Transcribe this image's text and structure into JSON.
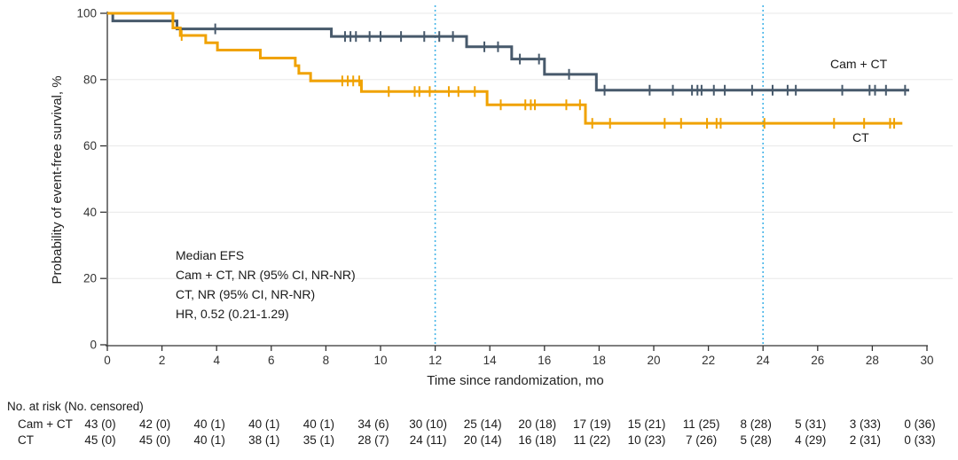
{
  "chart_data": {
    "type": "line",
    "subtype": "kaplan-meier-step",
    "title": "",
    "xlabel": "Time since randomization, mo",
    "ylabel": "Probability of event-free survival, %",
    "xlim": [
      0,
      30
    ],
    "ylim": [
      0,
      100
    ],
    "xticks": [
      0,
      2,
      4,
      6,
      8,
      10,
      12,
      14,
      16,
      18,
      20,
      22,
      24,
      26,
      28,
      30
    ],
    "yticks": [
      0,
      20,
      40,
      60,
      80,
      100
    ],
    "grid": "horizontal",
    "reference_lines_x": [
      12,
      24
    ],
    "legend_position": "curve-end-labels",
    "series": [
      {
        "name": "Cam + CT",
        "color": "#47596B",
        "steps": [
          [
            0,
            100
          ],
          [
            0.2,
            97.7
          ],
          [
            2.55,
            95.3
          ],
          [
            8.2,
            93.0
          ],
          [
            13.15,
            89.9
          ],
          [
            14.8,
            86.2
          ],
          [
            16.0,
            81.6
          ],
          [
            17.9,
            76.8
          ]
        ],
        "end_t": 29.35,
        "censor_marks": [
          [
            3.95,
            95.3
          ],
          [
            8.7,
            93.0
          ],
          [
            8.9,
            93.0
          ],
          [
            9.1,
            93.0
          ],
          [
            9.6,
            93.0
          ],
          [
            10.0,
            93.0
          ],
          [
            10.75,
            93.0
          ],
          [
            11.6,
            93.0
          ],
          [
            12.15,
            93.0
          ],
          [
            12.65,
            93.0
          ],
          [
            13.8,
            89.9
          ],
          [
            14.3,
            89.9
          ],
          [
            15.1,
            86.2
          ],
          [
            15.8,
            86.2
          ],
          [
            16.9,
            81.6
          ],
          [
            18.2,
            76.8
          ],
          [
            19.85,
            76.8
          ],
          [
            20.7,
            76.8
          ],
          [
            21.4,
            76.8
          ],
          [
            21.6,
            76.8
          ],
          [
            21.75,
            76.8
          ],
          [
            22.2,
            76.8
          ],
          [
            22.6,
            76.8
          ],
          [
            23.6,
            76.8
          ],
          [
            24.35,
            76.8
          ],
          [
            24.9,
            76.8
          ],
          [
            25.2,
            76.8
          ],
          [
            26.9,
            76.8
          ],
          [
            27.9,
            76.8
          ],
          [
            28.1,
            76.8
          ],
          [
            28.5,
            76.8
          ],
          [
            29.2,
            76.8
          ]
        ]
      },
      {
        "name": "CT",
        "color": "#F0A202",
        "steps": [
          [
            0,
            100
          ],
          [
            2.4,
            95.6
          ],
          [
            2.67,
            93.3
          ],
          [
            3.6,
            91.1
          ],
          [
            4.03,
            88.9
          ],
          [
            5.6,
            86.5
          ],
          [
            6.88,
            84.2
          ],
          [
            7.01,
            81.9
          ],
          [
            7.44,
            79.6
          ],
          [
            9.3,
            76.4
          ],
          [
            13.9,
            72.4
          ],
          [
            17.5,
            66.8
          ]
        ],
        "end_t": 29.1,
        "censor_marks": [
          [
            2.72,
            93.3
          ],
          [
            8.6,
            79.6
          ],
          [
            8.8,
            79.6
          ],
          [
            9.0,
            79.6
          ],
          [
            9.22,
            79.6
          ],
          [
            10.3,
            76.4
          ],
          [
            11.25,
            76.4
          ],
          [
            11.42,
            76.4
          ],
          [
            11.8,
            76.4
          ],
          [
            12.5,
            76.4
          ],
          [
            12.85,
            76.4
          ],
          [
            13.45,
            76.4
          ],
          [
            14.4,
            72.4
          ],
          [
            15.3,
            72.4
          ],
          [
            15.5,
            72.4
          ],
          [
            15.65,
            72.4
          ],
          [
            16.8,
            72.4
          ],
          [
            17.3,
            72.4
          ],
          [
            17.75,
            66.8
          ],
          [
            18.4,
            66.8
          ],
          [
            20.4,
            66.8
          ],
          [
            21.0,
            66.8
          ],
          [
            21.95,
            66.8
          ],
          [
            22.3,
            66.8
          ],
          [
            22.45,
            66.8
          ],
          [
            24.05,
            66.8
          ],
          [
            26.6,
            66.8
          ],
          [
            27.7,
            66.8
          ],
          [
            28.65,
            66.8
          ],
          [
            28.8,
            66.8
          ]
        ]
      }
    ],
    "annotations": [
      "Median EFS",
      "Cam + CT, NR (95% CI, NR-NR)",
      "CT, NR (95% CI, NR-NR)",
      "HR, 0.52 (0.21-1.29)"
    ]
  },
  "risk_table": {
    "header": "No. at risk (No. censored)",
    "rows": [
      {
        "label": "Cam + CT",
        "values": [
          "43 (0)",
          "42 (0)",
          "40 (1)",
          "40 (1)",
          "40 (1)",
          "34 (6)",
          "30 (10)",
          "25 (14)",
          "20 (18)",
          "17 (19)",
          "15 (21)",
          "11 (25)",
          "8 (28)",
          "5 (31)",
          "3 (33)",
          "0 (36)"
        ]
      },
      {
        "label": "CT",
        "values": [
          "45 (0)",
          "45 (0)",
          "40 (1)",
          "38 (1)",
          "35 (1)",
          "28 (7)",
          "24 (11)",
          "20 (14)",
          "16 (18)",
          "11 (22)",
          "10 (23)",
          "7 (26)",
          "5 (28)",
          "4 (29)",
          "2 (31)",
          "0 (33)"
        ]
      }
    ]
  },
  "colors": {
    "cam_ct_curve": "#47596B",
    "ct_curve": "#F0A202",
    "reference_line": "#45B5E8",
    "gridline": "#E8E8E8",
    "axis": "#333333",
    "text": "#1A1A1A"
  }
}
